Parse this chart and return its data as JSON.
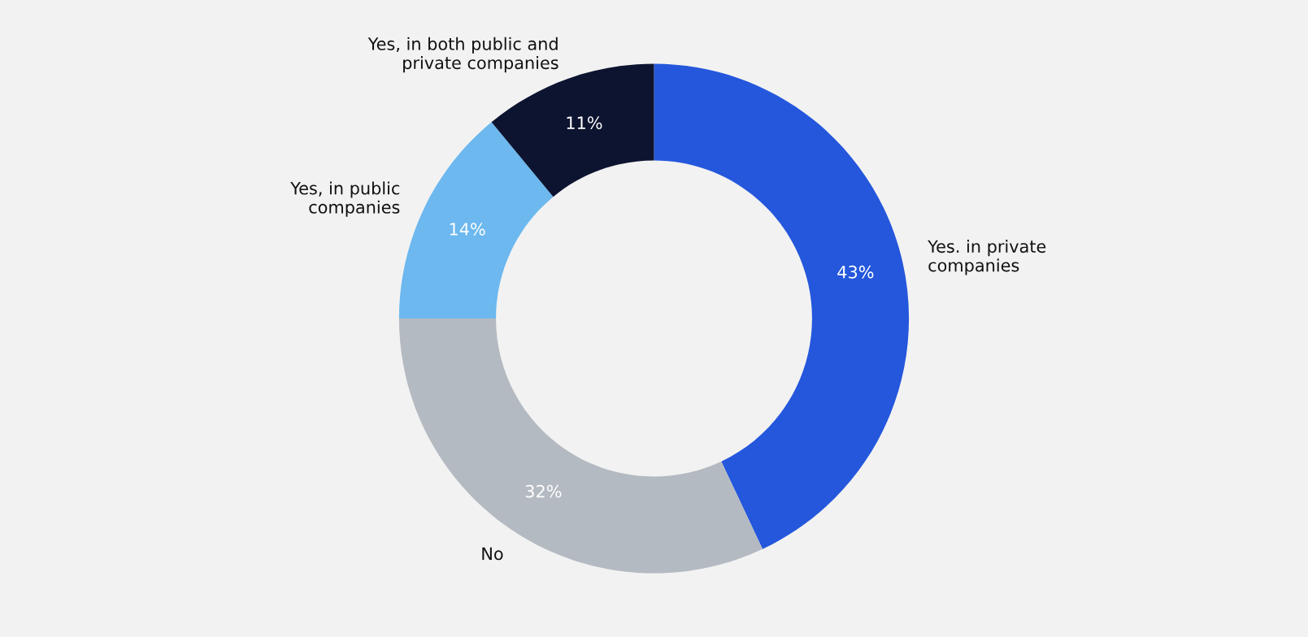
{
  "chart_data": {
    "type": "donut",
    "categories": [
      "Yes. in private\ncompanies",
      "No",
      "Yes, in public\ncompanies",
      "Yes, in both public and\nprivate companies"
    ],
    "values": [
      43,
      32,
      14,
      11
    ],
    "colors": [
      "#2457dc",
      "#b4bac1",
      "#6cb8ef",
      "#0d1430"
    ],
    "value_labels": [
      "43%",
      "32%",
      "14%",
      "11%"
    ],
    "legend": false
  }
}
